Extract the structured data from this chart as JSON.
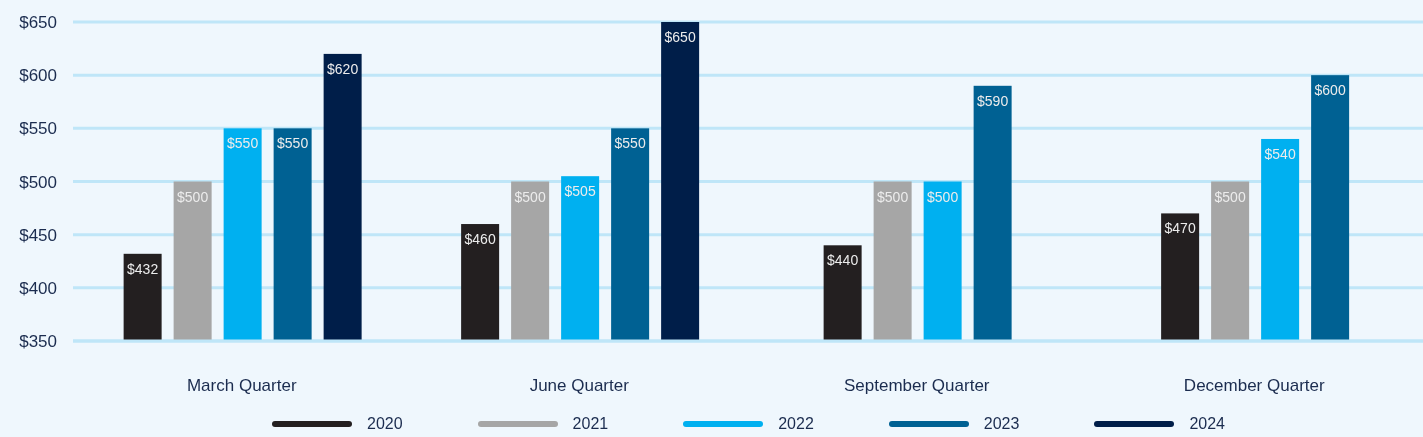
{
  "chart_data": {
    "type": "bar",
    "categories": [
      "March Quarter",
      "June Quarter",
      "September Quarter",
      "December Quarter"
    ],
    "series": [
      {
        "name": "2020",
        "color": "#231f20",
        "values": [
          432,
          460,
          440,
          470
        ],
        "value_labels": [
          "$432",
          "$460",
          "$440",
          "$470"
        ]
      },
      {
        "name": "2021",
        "color": "#a6a6a6",
        "values": [
          500,
          500,
          500,
          500
        ],
        "value_labels": [
          "$500",
          "$500",
          "$500",
          "$500"
        ]
      },
      {
        "name": "2022",
        "color": "#00b0f0",
        "values": [
          550,
          505,
          500,
          540
        ],
        "value_labels": [
          "$550",
          "$505",
          "$500",
          "$540"
        ]
      },
      {
        "name": "2023",
        "color": "#006193",
        "values": [
          550,
          550,
          590,
          600
        ],
        "value_labels": [
          "$550",
          "$550",
          "$590",
          "$600"
        ]
      },
      {
        "name": "2024",
        "color": "#001e49",
        "values": [
          620,
          650,
          null,
          null
        ],
        "value_labels": [
          "$620",
          "$650",
          null,
          null
        ]
      }
    ],
    "ylim": [
      350,
      650
    ],
    "yticks": [
      {
        "value": 350,
        "label": "$350"
      },
      {
        "value": 400,
        "label": "$400"
      },
      {
        "value": 450,
        "label": "$450"
      },
      {
        "value": 500,
        "label": "$500"
      },
      {
        "value": 550,
        "label": "$550"
      },
      {
        "value": 600,
        "label": "$600"
      },
      {
        "value": 650,
        "label": "$650"
      }
    ],
    "grid": "y",
    "legend": "bottom"
  }
}
